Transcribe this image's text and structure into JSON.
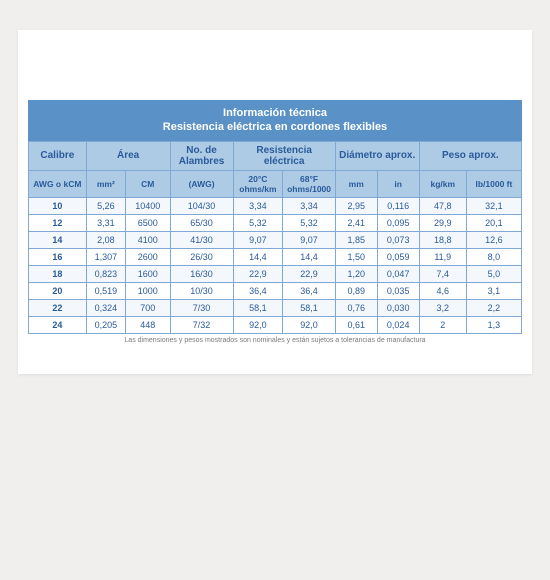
{
  "title_line1": "Información técnica",
  "title_line2": "Resistencia eléctrica en cordones flexibles",
  "columns": {
    "groups": [
      "Calibre",
      "Área",
      "No. de Alambres",
      "Resistencia eléctrica",
      "Diámetro aprox.",
      "Peso aprox."
    ],
    "subs": [
      "AWG o kCM",
      "mm²",
      "CM",
      "(AWG)",
      "20°C ohms/km",
      "68°F ohms/1000",
      "mm",
      "in",
      "kg/km",
      "lb/1000 ft"
    ]
  },
  "rows": [
    [
      "10",
      "5,26",
      "10400",
      "104/30",
      "3,34",
      "3,34",
      "2,95",
      "0,116",
      "47,8",
      "32,1"
    ],
    [
      "12",
      "3,31",
      "6500",
      "65/30",
      "5,32",
      "5,32",
      "2,41",
      "0,095",
      "29,9",
      "20,1"
    ],
    [
      "14",
      "2,08",
      "4100",
      "41/30",
      "9,07",
      "9,07",
      "1,85",
      "0,073",
      "18,8",
      "12,6"
    ],
    [
      "16",
      "1,307",
      "2600",
      "26/30",
      "14,4",
      "14,4",
      "1,50",
      "0,059",
      "11,9",
      "8,0"
    ],
    [
      "18",
      "0,823",
      "1600",
      "16/30",
      "22,9",
      "22,9",
      "1,20",
      "0,047",
      "7,4",
      "5,0"
    ],
    [
      "20",
      "0,519",
      "1000",
      "10/30",
      "36,4",
      "36,4",
      "0,89",
      "0,035",
      "4,6",
      "3,1"
    ],
    [
      "22",
      "0,324",
      "700",
      "7/30",
      "58,1",
      "58,1",
      "0,76",
      "0,030",
      "3,2",
      "2,2"
    ],
    [
      "24",
      "0,205",
      "448",
      "7/32",
      "92,0",
      "92,0",
      "0,61",
      "0,024",
      "2",
      "1,3"
    ]
  ],
  "footnote": "Las dimensiones y pesos mostrados son nominales y están sujetos a tolerancias de manufactura",
  "colors": {
    "header_bg": "#5a92c7",
    "subhead_bg": "#aecbe6",
    "border": "#7fa9d4",
    "text": "#2a5a9a"
  }
}
